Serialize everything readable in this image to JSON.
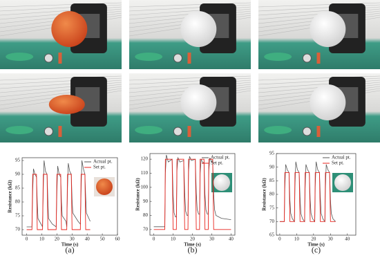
{
  "chart_data": [
    {
      "type": "line",
      "panel_label": "(a)",
      "x_label": "Time (s)",
      "y_label": "Resistance (kΩ)",
      "xlim": [
        -3,
        60
      ],
      "xticks": [
        0,
        10,
        20,
        30,
        40,
        50,
        60
      ],
      "ylim": [
        68,
        96
      ],
      "yticks": [
        70,
        75,
        80,
        85,
        90,
        95
      ],
      "x": [
        0,
        3.5,
        4,
        4.5,
        5.5,
        6.5,
        7,
        7.5,
        9.5,
        10.5,
        11,
        11.5,
        12.5,
        13.5,
        14,
        14.5,
        17,
        19.5,
        20,
        20.5,
        21.5,
        22.5,
        23,
        23.5,
        26,
        26.5,
        27,
        27.5,
        28.5,
        29.5,
        30,
        30.5,
        34,
        35.5,
        36,
        36.5,
        37.5,
        38.5,
        39,
        39.5,
        42
      ],
      "series": [
        {
          "name": "Actual pt.",
          "color": "#555555",
          "values": [
            71,
            71,
            84,
            92,
            90,
            89,
            80,
            74,
            72,
            71,
            85,
            95,
            91,
            90,
            81,
            74,
            72,
            71,
            84,
            93,
            90,
            89,
            80,
            75,
            73,
            71,
            85,
            94,
            91,
            90,
            81,
            76,
            73,
            72,
            85,
            95,
            92,
            90,
            82,
            76,
            73
          ]
        },
        {
          "name": "Set pt.",
          "color": "#e8231c",
          "values": [
            70,
            70,
            90,
            90,
            90,
            90,
            70,
            70,
            70,
            70,
            90,
            90,
            90,
            90,
            70,
            70,
            70,
            70,
            90,
            90,
            90,
            90,
            70,
            70,
            70,
            70,
            90,
            90,
            90,
            90,
            70,
            70,
            70,
            70,
            90,
            90,
            90,
            90,
            70,
            70,
            70
          ]
        }
      ]
    },
    {
      "type": "line",
      "panel_label": "(b)",
      "x_label": "Time (s)",
      "y_label": "Resistance (kΩ)",
      "xlim": [
        -2,
        42
      ],
      "xticks": [
        0,
        10,
        20,
        30,
        40
      ],
      "ylim": [
        66,
        124
      ],
      "yticks": [
        70,
        80,
        90,
        100,
        110,
        120
      ],
      "x": [
        0,
        5.7,
        6,
        6.5,
        7.5,
        9.5,
        10,
        10.5,
        11.2,
        11.7,
        12,
        12.5,
        13.5,
        15.5,
        16,
        16.5,
        17.2,
        17.7,
        18,
        18.5,
        19.5,
        21.5,
        22,
        22.5,
        23.2,
        23.7,
        24,
        24.5,
        25.5,
        26,
        26.5,
        27,
        27.7,
        28.2,
        28.5,
        29,
        30,
        30.5,
        31,
        31.5,
        32.2,
        35,
        40
      ],
      "series": [
        {
          "name": "Actual pt.",
          "color": "#555555",
          "values": [
            72,
            72,
            110,
            123,
            118,
            120,
            95,
            82,
            79,
            79,
            112,
            121,
            118,
            119,
            96,
            83,
            80,
            80,
            111,
            122,
            119,
            120,
            96,
            84,
            81,
            81,
            110,
            120,
            117,
            118,
            95,
            84,
            81,
            81,
            112,
            121,
            118,
            119,
            95,
            84,
            80,
            78,
            77
          ]
        },
        {
          "name": "Set pt.",
          "color": "#e8231c",
          "values": [
            70,
            70,
            120,
            120,
            120,
            120,
            70,
            70,
            70,
            70,
            120,
            120,
            120,
            120,
            70,
            70,
            70,
            70,
            120,
            120,
            120,
            120,
            70,
            70,
            70,
            70,
            120,
            120,
            120,
            120,
            70,
            70,
            70,
            70,
            120,
            120,
            120,
            120,
            70,
            70,
            70,
            70,
            70
          ]
        }
      ]
    },
    {
      "type": "line",
      "panel_label": "(c)",
      "x_label": "Time (s)",
      "y_label": "Resistance (kΩ)",
      "xlim": [
        -2,
        45
      ],
      "xticks": [
        0,
        10,
        20,
        30,
        40
      ],
      "ylim": [
        65,
        95
      ],
      "yticks": [
        65,
        70,
        75,
        80,
        85,
        90,
        95
      ],
      "x": [
        0,
        2.7,
        3,
        3.5,
        4.5,
        5.5,
        6,
        6.5,
        7.5,
        8.7,
        9,
        9.5,
        10.5,
        11.5,
        12,
        12.5,
        13.5,
        14.7,
        15,
        15.5,
        16.5,
        17.5,
        18,
        18.5,
        19.5,
        20.7,
        21,
        21.5,
        22.5,
        23.5,
        24,
        24.5,
        25.5,
        26.7,
        27,
        27.5,
        28.5,
        29.5,
        30,
        30.5,
        31.5,
        33
      ],
      "series": [
        {
          "name": "Actual pt.",
          "color": "#555555",
          "values": [
            70,
            70,
            82,
            91,
            89,
            88,
            78,
            73,
            71,
            70,
            83,
            92,
            89,
            88,
            79,
            73,
            71,
            70,
            82,
            91,
            89,
            88,
            78,
            73,
            71,
            70,
            83,
            92,
            89,
            88,
            79,
            73,
            71,
            70,
            82,
            91,
            89,
            88,
            78,
            73,
            71,
            70
          ]
        },
        {
          "name": "Set pt.",
          "color": "#e8231c",
          "values": [
            70,
            70,
            88,
            88,
            88,
            88,
            70,
            70,
            70,
            70,
            88,
            88,
            88,
            88,
            70,
            70,
            70,
            70,
            88,
            88,
            88,
            88,
            70,
            70,
            70,
            70,
            88,
            88,
            88,
            88,
            70,
            70,
            70,
            70,
            88,
            88,
            88,
            88,
            70,
            70,
            70,
            70
          ]
        }
      ]
    }
  ]
}
